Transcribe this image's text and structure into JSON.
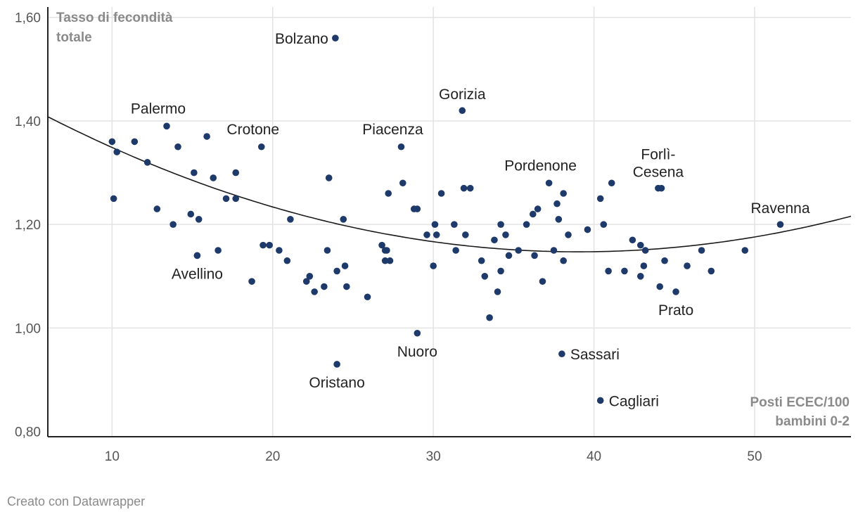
{
  "footer": "Creato con Datawrapper",
  "chart_data": {
    "type": "scatter",
    "ylabel_lines": [
      "Tasso di fecondità",
      "totale"
    ],
    "xlabel_lines": [
      "Posti ECEC/100",
      "bambini 0-2"
    ],
    "xlim": [
      6,
      56
    ],
    "ylim": [
      0.79,
      1.62
    ],
    "x_ticks": [
      10,
      20,
      30,
      40,
      50
    ],
    "y_ticks": [
      {
        "value": 0.8,
        "label": "0,80"
      },
      {
        "value": 1.0,
        "label": "1,00"
      },
      {
        "value": 1.2,
        "label": "1,20"
      },
      {
        "value": 1.4,
        "label": "1,40"
      },
      {
        "value": 1.6,
        "label": "1,60"
      }
    ],
    "grid": true,
    "point_color": "#1d3a6b",
    "trendline": {
      "type": "quadratic",
      "a": 0.000239,
      "b": -0.018663,
      "c": 1.5115,
      "color": "#1a1a1a"
    },
    "labeled_points": [
      {
        "name": "Bolzano",
        "x": 23.9,
        "y": 1.56,
        "label_pos": "left"
      },
      {
        "name": "Gorizia",
        "x": 31.8,
        "y": 1.42,
        "label_pos": "above"
      },
      {
        "name": "Palermo",
        "x": 13.4,
        "y": 1.39,
        "label_pos": "above-left"
      },
      {
        "name": "Crotone",
        "x": 19.3,
        "y": 1.35,
        "label_pos": "above-left"
      },
      {
        "name": "Piacenza",
        "x": 28.0,
        "y": 1.35,
        "label_pos": "above-left"
      },
      {
        "name": "Pordenone",
        "x": 37.2,
        "y": 1.28,
        "label_pos": "above-left"
      },
      {
        "name": "Forlì-Cesena",
        "lines": [
          "Forlì-",
          "Cesena"
        ],
        "x": 44.0,
        "y": 1.27,
        "label_pos": "above"
      },
      {
        "name": "Ravenna",
        "x": 51.6,
        "y": 1.2,
        "label_pos": "above"
      },
      {
        "name": "Avellino",
        "x": 15.3,
        "y": 1.14,
        "label_pos": "below"
      },
      {
        "name": "Prato",
        "x": 45.1,
        "y": 1.07,
        "label_pos": "below"
      },
      {
        "name": "Nuoro",
        "x": 29.0,
        "y": 0.99,
        "label_pos": "below"
      },
      {
        "name": "Sassari",
        "x": 38.0,
        "y": 0.95,
        "label_pos": "right"
      },
      {
        "name": "Oristano",
        "x": 24.0,
        "y": 0.93,
        "label_pos": "below"
      },
      {
        "name": "Cagliari",
        "x": 40.4,
        "y": 0.86,
        "label_pos": "right"
      }
    ],
    "points": [
      [
        10.0,
        1.36
      ],
      [
        10.3,
        1.34
      ],
      [
        10.1,
        1.25
      ],
      [
        11.4,
        1.36
      ],
      [
        12.2,
        1.32
      ],
      [
        12.8,
        1.23
      ],
      [
        13.8,
        1.2
      ],
      [
        14.1,
        1.35
      ],
      [
        14.9,
        1.22
      ],
      [
        15.1,
        1.3
      ],
      [
        15.3,
        1.14
      ],
      [
        15.4,
        1.21
      ],
      [
        15.9,
        1.37
      ],
      [
        16.3,
        1.29
      ],
      [
        16.6,
        1.15
      ],
      [
        17.1,
        1.25
      ],
      [
        17.7,
        1.3
      ],
      [
        17.7,
        1.25
      ],
      [
        18.7,
        1.09
      ],
      [
        19.4,
        1.16
      ],
      [
        19.8,
        1.16
      ],
      [
        20.4,
        1.15
      ],
      [
        20.9,
        1.13
      ],
      [
        21.1,
        1.21
      ],
      [
        22.1,
        1.09
      ],
      [
        22.3,
        1.1
      ],
      [
        22.6,
        1.07
      ],
      [
        23.2,
        1.08
      ],
      [
        23.4,
        1.15
      ],
      [
        23.5,
        1.29
      ],
      [
        24.0,
        1.11
      ],
      [
        24.4,
        1.21
      ],
      [
        24.5,
        1.12
      ],
      [
        24.6,
        1.08
      ],
      [
        25.9,
        1.06
      ],
      [
        26.8,
        1.16
      ],
      [
        27.0,
        1.15
      ],
      [
        27.0,
        1.13
      ],
      [
        27.1,
        1.15
      ],
      [
        27.2,
        1.26
      ],
      [
        27.3,
        1.13
      ],
      [
        28.1,
        1.28
      ],
      [
        28.8,
        1.23
      ],
      [
        29.0,
        1.23
      ],
      [
        29.6,
        1.18
      ],
      [
        30.0,
        1.12
      ],
      [
        30.1,
        1.2
      ],
      [
        30.2,
        1.18
      ],
      [
        30.5,
        1.26
      ],
      [
        31.3,
        1.2
      ],
      [
        31.4,
        1.15
      ],
      [
        31.9,
        1.27
      ],
      [
        32.0,
        1.18
      ],
      [
        32.3,
        1.27
      ],
      [
        33.0,
        1.13
      ],
      [
        33.2,
        1.1
      ],
      [
        33.5,
        1.02
      ],
      [
        33.8,
        1.17
      ],
      [
        34.0,
        1.07
      ],
      [
        34.2,
        1.11
      ],
      [
        34.2,
        1.2
      ],
      [
        34.5,
        1.18
      ],
      [
        34.7,
        1.14
      ],
      [
        35.3,
        1.15
      ],
      [
        35.8,
        1.2
      ],
      [
        36.2,
        1.22
      ],
      [
        36.3,
        1.14
      ],
      [
        36.5,
        1.23
      ],
      [
        36.8,
        1.09
      ],
      [
        37.5,
        1.15
      ],
      [
        37.7,
        1.24
      ],
      [
        37.8,
        1.21
      ],
      [
        38.1,
        1.26
      ],
      [
        38.1,
        1.13
      ],
      [
        38.4,
        1.18
      ],
      [
        39.6,
        1.19
      ],
      [
        40.4,
        1.25
      ],
      [
        40.6,
        1.2
      ],
      [
        40.9,
        1.11
      ],
      [
        41.1,
        1.28
      ],
      [
        41.9,
        1.11
      ],
      [
        42.4,
        1.17
      ],
      [
        42.9,
        1.1
      ],
      [
        42.9,
        1.16
      ],
      [
        43.1,
        1.12
      ],
      [
        43.2,
        1.15
      ],
      [
        44.2,
        1.27
      ],
      [
        44.1,
        1.08
      ],
      [
        44.4,
        1.13
      ],
      [
        45.8,
        1.12
      ],
      [
        46.7,
        1.15
      ],
      [
        47.3,
        1.11
      ],
      [
        49.4,
        1.15
      ]
    ]
  }
}
